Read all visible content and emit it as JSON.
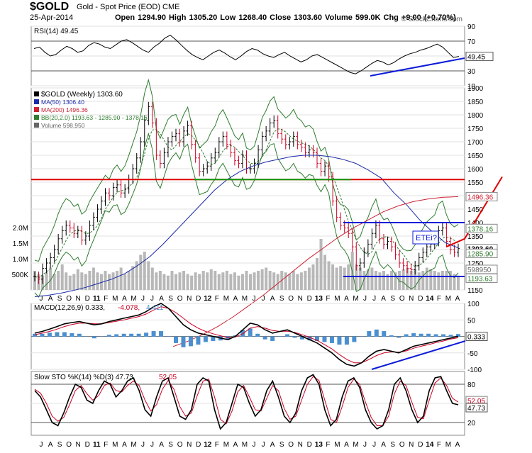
{
  "header": {
    "symbol": "$GOLD",
    "name": "Gold - Spot Price (EOD)  CME",
    "date": "25-Apr-2014",
    "ohlc": "Open 1294.90  High 1305.20  Low 1268.40  Close 1303.60  Volume 599.0K  Chg +9.00 (+0.70%)",
    "brand": "© StockCharts.com"
  },
  "colors": {
    "up": "#000000",
    "down": "#cc0022",
    "ma50": "#1a2aa8",
    "ma200": "#cc2233",
    "bb": "#2f7d2f",
    "volume": "#b8b8b8",
    "annotation_blue": "#0b1bd8",
    "annotation_red": "#e00000",
    "annotation_green": "#119911"
  },
  "chart_data": [
    {
      "type": "line",
      "panel": "RSI",
      "legend": "RSI(14) 49.45",
      "ylim": [
        10,
        90
      ],
      "yticks": [
        "90",
        "70",
        "50",
        "30",
        "10"
      ],
      "current_label": "49.45",
      "levels": [
        70,
        30
      ],
      "values": [
        60,
        62,
        55,
        50,
        52,
        58,
        63,
        60,
        55,
        57,
        64,
        68,
        66,
        62,
        60,
        65,
        70,
        72,
        68,
        63,
        58,
        55,
        62,
        67,
        74,
        78,
        72,
        65,
        58,
        52,
        48,
        45,
        50,
        55,
        58,
        54,
        49,
        45,
        50,
        56,
        60,
        58,
        53,
        50,
        48,
        52,
        55,
        50,
        46,
        42,
        45,
        50,
        52,
        48,
        44,
        40,
        36,
        32,
        28,
        26,
        30,
        35,
        40,
        44,
        42,
        38,
        41,
        46,
        50,
        53,
        55,
        58,
        60,
        63,
        66,
        62,
        55,
        48,
        49.45
      ]
    },
    {
      "type": "line",
      "panel": "price",
      "legend": [
        "$GOLD (Weekly) 1303.60",
        "MA(50) 1306.40",
        "MA(200) 1496.36",
        "BB(20,2.0) 1193.63 - 1285.90 - 1378.16",
        "Volume 598,950"
      ],
      "ylim": [
        1150,
        1900
      ],
      "yticks": [
        "1900",
        "1850",
        "1800",
        "1750",
        "1700",
        "1650",
        "1600",
        "1550",
        "1500",
        "1450",
        "1400",
        "1350",
        "1300",
        "1250",
        "1200",
        "1150"
      ],
      "xlabels": [
        "J",
        "A",
        "S",
        "O",
        "N",
        "D",
        "11",
        "F",
        "M",
        "A",
        "M",
        "J",
        "J",
        "A",
        "S",
        "O",
        "N",
        "D",
        "12",
        "F",
        "M",
        "A",
        "M",
        "J",
        "J",
        "A",
        "S",
        "O",
        "N",
        "D",
        "13",
        "F",
        "M",
        "A",
        "M",
        "J",
        "J",
        "A",
        "S",
        "O",
        "N",
        "D",
        "14",
        "F",
        "M",
        "A"
      ],
      "close": [
        1200,
        1190,
        1230,
        1250,
        1270,
        1300,
        1340,
        1370,
        1390,
        1380,
        1360,
        1370,
        1335,
        1350,
        1390,
        1420,
        1450,
        1480,
        1510,
        1500,
        1530,
        1540,
        1510,
        1525,
        1560,
        1600,
        1640,
        1700,
        1780,
        1830,
        1770,
        1650,
        1620,
        1660,
        1700,
        1720,
        1730,
        1700,
        1740,
        1760,
        1690,
        1640,
        1590,
        1600,
        1610,
        1640,
        1660,
        1700,
        1720,
        1690,
        1660,
        1630,
        1620,
        1650,
        1600,
        1600,
        1620,
        1670,
        1720,
        1740,
        1770,
        1780,
        1730,
        1710,
        1690,
        1700,
        1720,
        1690,
        1680,
        1660,
        1670,
        1660,
        1620,
        1590,
        1610,
        1570,
        1480,
        1420,
        1390,
        1380,
        1360,
        1310,
        1240,
        1250,
        1290,
        1320,
        1360,
        1390,
        1340,
        1320,
        1330,
        1310,
        1280,
        1250,
        1240,
        1230,
        1225,
        1240,
        1270,
        1290,
        1310,
        1320,
        1330,
        1370,
        1380,
        1330,
        1300,
        1290,
        1303.6
      ],
      "ma50": [
        1125,
        1130,
        1138,
        1148,
        1160,
        1175,
        1190,
        1210,
        1240,
        1275,
        1320,
        1370,
        1420,
        1470,
        1520,
        1560,
        1590,
        1610,
        1625,
        1635,
        1645,
        1650,
        1650,
        1645,
        1635,
        1620,
        1595,
        1565,
        1510,
        1465,
        1410,
        1365,
        1325,
        1306.4
      ],
      "ma200": [
        940,
        960,
        985,
        1015,
        1050,
        1090,
        1130,
        1175,
        1220,
        1265,
        1305,
        1345,
        1380,
        1410,
        1440,
        1462,
        1478,
        1488,
        1494,
        1496.36
      ],
      "bb_mid": 1285.9,
      "bb_upper": 1378.16,
      "bb_lower": 1193.63,
      "current_labels": [
        "1496.36",
        "1378.16",
        "1303.60",
        "1285.90",
        "598950",
        "1193.63"
      ],
      "volume_labels": [
        "2.0M",
        "1.5M",
        "1.0M",
        "500K"
      ],
      "horizontal_levels": [
        1560,
        1560,
        1400,
        1200
      ],
      "annotation": "ETEi?"
    },
    {
      "type": "line",
      "panel": "MACD",
      "legend": [
        "MACD(12,26,9) 0.333,",
        "-4.078,",
        "4.411"
      ],
      "ylim": [
        -100,
        100
      ],
      "yticks": [
        "100",
        "50",
        "-50",
        "-100"
      ],
      "current_label": "0.333",
      "macd": [
        10,
        15,
        22,
        30,
        38,
        42,
        45,
        40,
        35,
        38,
        45,
        50,
        55,
        60,
        65,
        75,
        90,
        100,
        85,
        60,
        35,
        20,
        10,
        5,
        0,
        -5,
        -10,
        0,
        20,
        40,
        35,
        20,
        10,
        15,
        20,
        10,
        0,
        -10,
        -20,
        -35,
        -50,
        -70,
        -85,
        -90,
        -80,
        -60,
        -45,
        -40,
        -45,
        -50,
        -40,
        -30,
        -25,
        -20,
        -15,
        -10,
        -5,
        0.333
      ],
      "signal": [
        5,
        10,
        15,
        22,
        30,
        36,
        40,
        40,
        38,
        38,
        42,
        46,
        50,
        55,
        60,
        68,
        80,
        90,
        85,
        72,
        55,
        38,
        25,
        15,
        8,
        2,
        -4,
        -2,
        8,
        25,
        30,
        25,
        18,
        15,
        16,
        12,
        5,
        -3,
        -12,
        -25,
        -38,
        -55,
        -70,
        -80,
        -80,
        -70,
        -58,
        -50,
        -47,
        -48,
        -44,
        -36,
        -30,
        -25,
        -19,
        -14,
        -8,
        -4.078
      ]
    },
    {
      "type": "line",
      "panel": "Slow STO",
      "legend": [
        "Slow STO %K(14) %D(3) 47.73,",
        "52.05"
      ],
      "ylim": [
        0,
        100
      ],
      "yticks": [
        "80",
        "20"
      ],
      "current_labels": [
        "52.05",
        "47.73"
      ],
      "k": [
        70,
        60,
        40,
        20,
        15,
        35,
        60,
        80,
        75,
        55,
        50,
        70,
        85,
        80,
        60,
        70,
        85,
        90,
        70,
        40,
        30,
        60,
        85,
        90,
        60,
        30,
        25,
        40,
        80,
        90,
        85,
        40,
        10,
        20,
        50,
        80,
        75,
        50,
        30,
        40,
        70,
        85,
        60,
        30,
        20,
        35,
        70,
        90,
        95,
        80,
        40,
        15,
        25,
        60,
        85,
        90,
        75,
        40,
        20,
        10,
        15,
        40,
        80,
        90,
        70,
        40,
        20,
        30,
        70,
        90,
        92,
        70,
        50,
        47.73
      ],
      "d": [
        72,
        66,
        50,
        30,
        22,
        28,
        48,
        70,
        78,
        65,
        55,
        62,
        78,
        82,
        70,
        68,
        78,
        85,
        78,
        55,
        38,
        48,
        72,
        86,
        72,
        45,
        30,
        35,
        62,
        85,
        88,
        60,
        25,
        18,
        38,
        68,
        78,
        60,
        40,
        38,
        58,
        78,
        70,
        42,
        25,
        30,
        55,
        80,
        92,
        86,
        55,
        25,
        20,
        45,
        75,
        88,
        80,
        52,
        28,
        15,
        15,
        30,
        65,
        85,
        78,
        52,
        28,
        26,
        55,
        82,
        90,
        78,
        58,
        52.05
      ]
    }
  ]
}
